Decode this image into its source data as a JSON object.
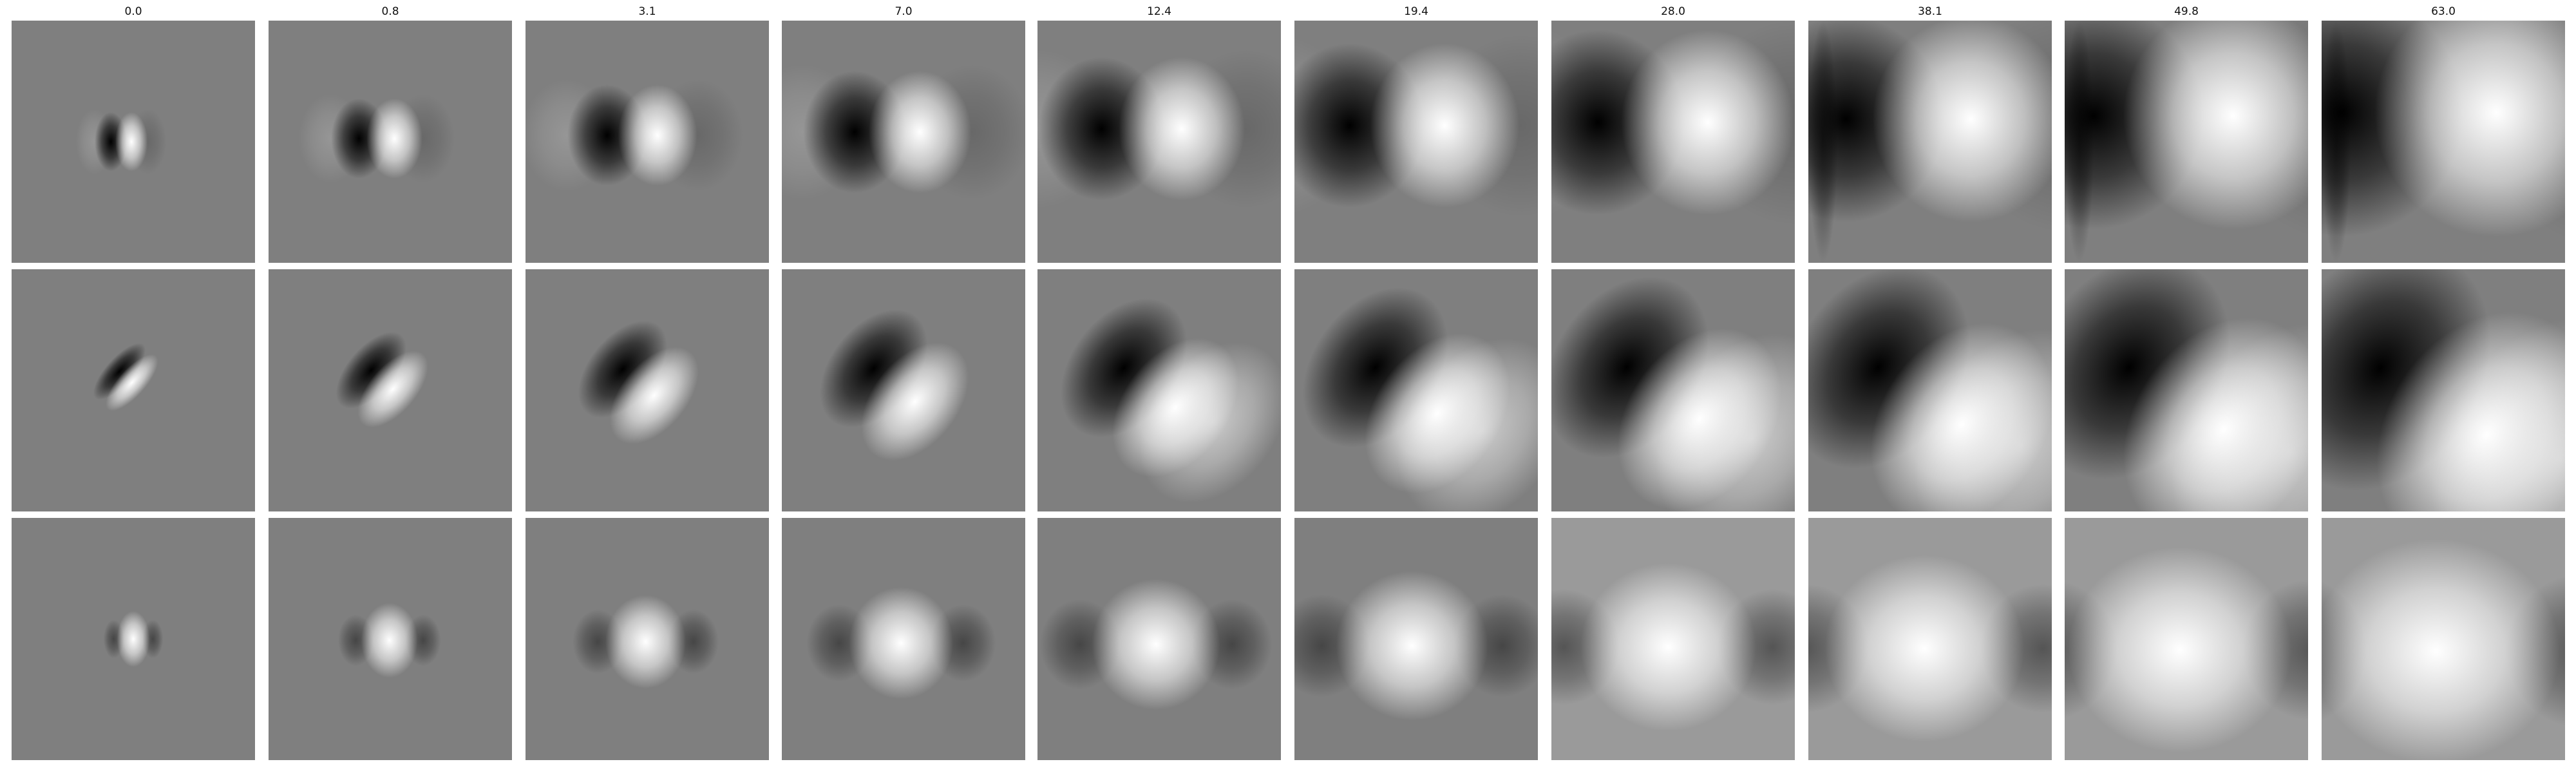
{
  "figure": {
    "column_titles": [
      "0.0",
      "0.8",
      "3.1",
      "7.0",
      "12.4",
      "19.4",
      "28.0",
      "38.1",
      "49.8",
      "63.0"
    ],
    "rows": 3,
    "background_gray": "#7f7f7f",
    "colormap": "gray"
  }
}
